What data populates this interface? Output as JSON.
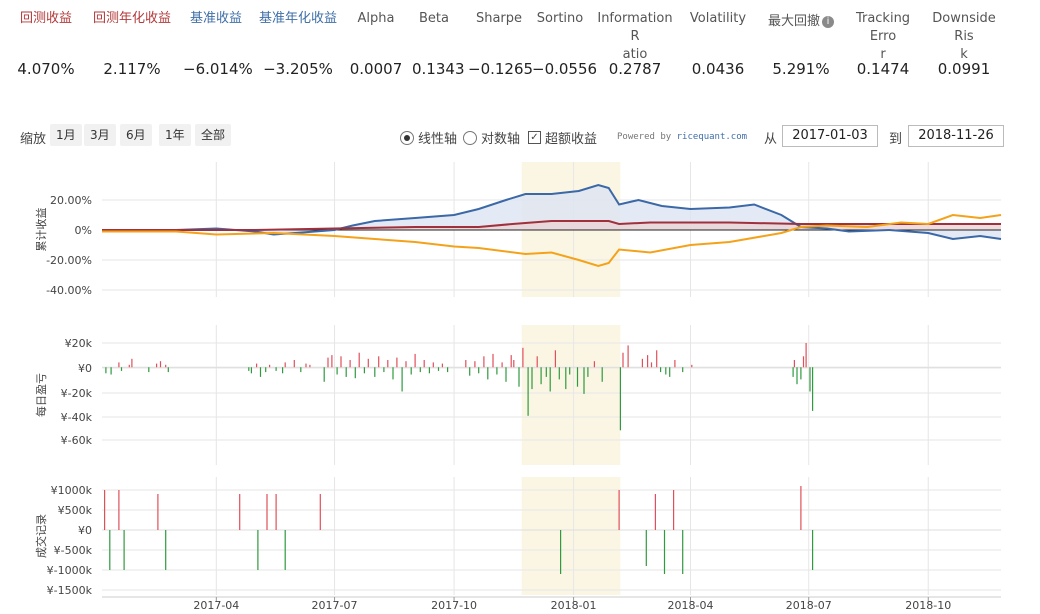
{
  "metrics": [
    {
      "label": "回测收益",
      "value": "4.070%",
      "color": "red"
    },
    {
      "label": "回测年化收益",
      "value": "2.117%",
      "color": "red"
    },
    {
      "label": "基准收益",
      "value": "−6.014%",
      "color": "blue"
    },
    {
      "label": "基准年化收益",
      "value": "−3.205%",
      "color": "blue"
    },
    {
      "label": "Alpha",
      "value": "0.0007",
      "color": "gray"
    },
    {
      "label": "Beta",
      "value": "0.1343",
      "color": "gray"
    },
    {
      "label": "Sharpe",
      "value": "−0.1265",
      "color": "gray"
    },
    {
      "label": "Sortino",
      "value": "−0.0556",
      "color": "gray"
    },
    {
      "label": "Information R\natio",
      "value": "0.2787",
      "color": "gray"
    },
    {
      "label": "Volatility",
      "value": "0.0436",
      "color": "gray"
    },
    {
      "label": "最大回撤",
      "value": "5.291%",
      "color": "gray",
      "icon": "info-icon"
    },
    {
      "label": "Tracking Erro\nr",
      "value": "0.1474",
      "color": "gray"
    },
    {
      "label": "Downside Ris\nk",
      "value": "0.0991",
      "color": "gray"
    }
  ],
  "toolbar": {
    "zoom_label": "缩放",
    "zoom_buttons": [
      "1月",
      "3月",
      "6月",
      "1年",
      "全部"
    ],
    "linear_axis": "线性轴",
    "log_axis": "对数轴",
    "excess_return": "超额收益",
    "excess_checked": "✓",
    "powered_by": "Powered by ",
    "powered_brand": "ricequant.com",
    "from_label": "从",
    "from_date": "2017-01-03",
    "to_label": "到",
    "to_date": "2018-11-26"
  },
  "colors": {
    "strategy": "#a0303c",
    "benchmark": "#3b68a6",
    "excess": "#f4a21a",
    "gain": "#e0505a",
    "loss": "#2f9a3e",
    "highlight": "#fbf6e4"
  },
  "chart_data": [
    {
      "type": "line",
      "ylabel": "累计收益",
      "yticks": [
        "20.00%",
        "0%",
        "-20.00%",
        "-40.00%"
      ],
      "ylim": [
        -40,
        30
      ],
      "series": [
        {
          "key": "benchmark",
          "points": [
            [
              "2017-01-03",
              -1
            ],
            [
              "2017-02-01",
              -0.5
            ],
            [
              "2017-03-01",
              0
            ],
            [
              "2017-04-01",
              1
            ],
            [
              "2017-05-01",
              -1
            ],
            [
              "2017-05-15",
              -3
            ],
            [
              "2017-06-01",
              -2
            ],
            [
              "2017-07-01",
              0
            ],
            [
              "2017-07-15",
              3
            ],
            [
              "2017-08-01",
              6
            ],
            [
              "2017-09-01",
              8
            ],
            [
              "2017-10-01",
              10
            ],
            [
              "2017-10-20",
              14
            ],
            [
              "2017-11-10",
              20
            ],
            [
              "2017-11-25",
              24
            ],
            [
              "2017-12-15",
              24
            ],
            [
              "2018-01-05",
              26
            ],
            [
              "2018-01-20",
              30
            ],
            [
              "2018-01-28",
              28
            ],
            [
              "2018-02-05",
              17
            ],
            [
              "2018-02-20",
              20
            ],
            [
              "2018-03-10",
              16
            ],
            [
              "2018-04-01",
              14
            ],
            [
              "2018-05-01",
              15
            ],
            [
              "2018-05-20",
              17
            ],
            [
              "2018-06-10",
              10
            ],
            [
              "2018-06-25",
              2
            ],
            [
              "2018-07-15",
              1
            ],
            [
              "2018-08-01",
              -1
            ],
            [
              "2018-09-01",
              0
            ],
            [
              "2018-10-01",
              -2
            ],
            [
              "2018-10-20",
              -6
            ],
            [
              "2018-11-10",
              -4
            ],
            [
              "2018-11-26",
              -6
            ]
          ]
        },
        {
          "key": "strategy",
          "points": [
            [
              "2017-01-03",
              0
            ],
            [
              "2017-03-01",
              0
            ],
            [
              "2017-05-01",
              0
            ],
            [
              "2017-07-01",
              1
            ],
            [
              "2017-09-01",
              2
            ],
            [
              "2017-10-20",
              2
            ],
            [
              "2017-11-15",
              4
            ],
            [
              "2017-12-15",
              6
            ],
            [
              "2018-01-05",
              6
            ],
            [
              "2018-01-28",
              6
            ],
            [
              "2018-02-05",
              4
            ],
            [
              "2018-03-01",
              5
            ],
            [
              "2018-05-01",
              5
            ],
            [
              "2018-06-25",
              4
            ],
            [
              "2018-08-01",
              4
            ],
            [
              "2018-10-01",
              4
            ],
            [
              "2018-11-26",
              4
            ]
          ]
        },
        {
          "key": "excess",
          "points": [
            [
              "2017-01-03",
              -1
            ],
            [
              "2017-03-01",
              -1
            ],
            [
              "2017-04-01",
              -3
            ],
            [
              "2017-05-15",
              -2
            ],
            [
              "2017-07-01",
              -4
            ],
            [
              "2017-08-01",
              -6
            ],
            [
              "2017-09-01",
              -8
            ],
            [
              "2017-10-01",
              -11
            ],
            [
              "2017-10-20",
              -12
            ],
            [
              "2017-11-25",
              -16
            ],
            [
              "2017-12-15",
              -15
            ],
            [
              "2018-01-05",
              -20
            ],
            [
              "2018-01-20",
              -24
            ],
            [
              "2018-01-28",
              -22
            ],
            [
              "2018-02-05",
              -13
            ],
            [
              "2018-03-01",
              -15
            ],
            [
              "2018-04-01",
              -10
            ],
            [
              "2018-05-01",
              -8
            ],
            [
              "2018-06-10",
              -2
            ],
            [
              "2018-06-25",
              2
            ],
            [
              "2018-07-15",
              3
            ],
            [
              "2018-08-15",
              2
            ],
            [
              "2018-09-10",
              5
            ],
            [
              "2018-10-01",
              4
            ],
            [
              "2018-10-20",
              10
            ],
            [
              "2018-11-10",
              8
            ],
            [
              "2018-11-26",
              10
            ]
          ]
        }
      ]
    },
    {
      "type": "bar",
      "ylabel": "每日盈亏",
      "yticks": [
        "¥20k",
        "¥0",
        "¥-20k",
        "¥-40k",
        "¥-60k"
      ],
      "ylim": [
        -60000,
        20000
      ],
      "bars": [
        [
          "2017-01-06",
          -5000
        ],
        [
          "2017-01-10",
          -6000
        ],
        [
          "2017-01-16",
          4000
        ],
        [
          "2017-01-18",
          -3000
        ],
        [
          "2017-01-24",
          2000
        ],
        [
          "2017-01-26",
          7000
        ],
        [
          "2017-02-08",
          -4000
        ],
        [
          "2017-02-14",
          3000
        ],
        [
          "2017-02-17",
          5000
        ],
        [
          "2017-02-21",
          2000
        ],
        [
          "2017-02-23",
          -4000
        ],
        [
          "2017-04-26",
          -3000
        ],
        [
          "2017-04-28",
          -5000
        ],
        [
          "2017-05-02",
          3000
        ],
        [
          "2017-05-05",
          -8000
        ],
        [
          "2017-05-09",
          -4000
        ],
        [
          "2017-05-12",
          2000
        ],
        [
          "2017-05-17",
          -3000
        ],
        [
          "2017-05-22",
          -5000
        ],
        [
          "2017-05-24",
          4000
        ],
        [
          "2017-05-31",
          6000
        ],
        [
          "2017-06-05",
          -4000
        ],
        [
          "2017-06-09",
          3000
        ],
        [
          "2017-06-12",
          2000
        ],
        [
          "2017-06-23",
          -12000
        ],
        [
          "2017-06-26",
          8000
        ],
        [
          "2017-06-29",
          10000
        ],
        [
          "2017-07-03",
          -6000
        ],
        [
          "2017-07-06",
          9000
        ],
        [
          "2017-07-10",
          -8000
        ],
        [
          "2017-07-13",
          6000
        ],
        [
          "2017-07-17",
          -9000
        ],
        [
          "2017-07-20",
          12000
        ],
        [
          "2017-07-24",
          -5000
        ],
        [
          "2017-07-27",
          7000
        ],
        [
          "2017-08-01",
          -8000
        ],
        [
          "2017-08-04",
          9000
        ],
        [
          "2017-08-08",
          -4000
        ],
        [
          "2017-08-11",
          6000
        ],
        [
          "2017-08-15",
          -10000
        ],
        [
          "2017-08-18",
          8000
        ],
        [
          "2017-08-22",
          -20000
        ],
        [
          "2017-08-25",
          5000
        ],
        [
          "2017-08-29",
          -6000
        ],
        [
          "2017-09-01",
          11000
        ],
        [
          "2017-09-05",
          -4000
        ],
        [
          "2017-09-08",
          6000
        ],
        [
          "2017-09-12",
          -5000
        ],
        [
          "2017-09-15",
          4000
        ],
        [
          "2017-09-19",
          -3000
        ],
        [
          "2017-09-22",
          3000
        ],
        [
          "2017-09-26",
          -4000
        ],
        [
          "2017-10-10",
          6000
        ],
        [
          "2017-10-13",
          -7000
        ],
        [
          "2017-10-17",
          5000
        ],
        [
          "2017-10-20",
          -5000
        ],
        [
          "2017-10-24",
          9000
        ],
        [
          "2017-10-27",
          -10000
        ],
        [
          "2017-10-31",
          11000
        ],
        [
          "2017-11-03",
          -6000
        ],
        [
          "2017-11-07",
          4000
        ],
        [
          "2017-11-10",
          -12000
        ],
        [
          "2017-11-14",
          10000
        ],
        [
          "2017-11-16",
          6000
        ],
        [
          "2017-11-20",
          -16000
        ],
        [
          "2017-11-23",
          16000
        ],
        [
          "2017-11-27",
          -40000
        ],
        [
          "2017-11-30",
          -18000
        ],
        [
          "2017-12-04",
          9000
        ],
        [
          "2017-12-07",
          -14000
        ],
        [
          "2017-12-11",
          -8000
        ],
        [
          "2017-12-14",
          -20000
        ],
        [
          "2017-12-18",
          14000
        ],
        [
          "2017-12-21",
          -10000
        ],
        [
          "2017-12-26",
          -18000
        ],
        [
          "2017-12-29",
          -6000
        ],
        [
          "2018-01-04",
          -16000
        ],
        [
          "2018-01-09",
          -22000
        ],
        [
          "2018-01-12",
          -8000
        ],
        [
          "2018-01-17",
          5000
        ],
        [
          "2018-01-23",
          -12000
        ],
        [
          "2018-02-06",
          -52000
        ],
        [
          "2018-02-08",
          12000
        ],
        [
          "2018-02-12",
          18000
        ],
        [
          "2018-02-23",
          7000
        ],
        [
          "2018-02-27",
          10000
        ],
        [
          "2018-03-02",
          4000
        ],
        [
          "2018-03-06",
          14000
        ],
        [
          "2018-03-09",
          -4000
        ],
        [
          "2018-03-13",
          -6000
        ],
        [
          "2018-03-16",
          -8000
        ],
        [
          "2018-03-20",
          6000
        ],
        [
          "2018-03-26",
          -4000
        ],
        [
          "2018-04-02",
          2000
        ],
        [
          "2018-06-19",
          -8000
        ],
        [
          "2018-06-20",
          6000
        ],
        [
          "2018-06-22",
          -14000
        ],
        [
          "2018-06-25",
          -10000
        ],
        [
          "2018-06-27",
          9000
        ],
        [
          "2018-06-29",
          20000
        ],
        [
          "2018-07-02",
          -20000
        ],
        [
          "2018-07-04",
          -36000
        ]
      ]
    },
    {
      "type": "bar",
      "ylabel": "成交记录",
      "yticks": [
        "¥1000k",
        "¥500k",
        "¥0",
        "¥-500k",
        "¥-1000k",
        "¥-1500k"
      ],
      "ylim": [
        -1500000,
        1000000
      ],
      "bars": [
        [
          "2017-01-05",
          1000000
        ],
        [
          "2017-01-09",
          -1000000
        ],
        [
          "2017-01-16",
          1000000
        ],
        [
          "2017-01-20",
          -1000000
        ],
        [
          "2017-02-15",
          900000
        ],
        [
          "2017-02-21",
          -1000000
        ],
        [
          "2017-04-19",
          900000
        ],
        [
          "2017-05-03",
          -1000000
        ],
        [
          "2017-05-10",
          900000
        ],
        [
          "2017-05-17",
          900000
        ],
        [
          "2017-05-24",
          -1000000
        ],
        [
          "2017-06-20",
          900000
        ],
        [
          "2017-12-22",
          -1100000
        ],
        [
          "2018-02-05",
          1000000
        ],
        [
          "2018-02-26",
          -900000
        ],
        [
          "2018-03-05",
          900000
        ],
        [
          "2018-03-12",
          -1100000
        ],
        [
          "2018-03-19",
          1000000
        ],
        [
          "2018-03-26",
          -1100000
        ],
        [
          "2018-06-25",
          1100000
        ],
        [
          "2018-07-04",
          -1000000
        ]
      ]
    }
  ],
  "x_axis": {
    "ticks": [
      {
        "date": "2017-04-01",
        "label": "2017-04"
      },
      {
        "date": "2017-07-01",
        "label": "2017-07"
      },
      {
        "date": "2017-10-01",
        "label": "2017-10"
      },
      {
        "date": "2018-01-01",
        "label": "2018-01"
      },
      {
        "date": "2018-04-01",
        "label": "2018-04"
      },
      {
        "date": "2018-07-01",
        "label": "2018-07"
      },
      {
        "date": "2018-10-01",
        "label": "2018-10"
      }
    ],
    "range": [
      "2017-01-03",
      "2018-11-26"
    ],
    "highlight": [
      "2017-11-22",
      "2018-02-06"
    ]
  }
}
